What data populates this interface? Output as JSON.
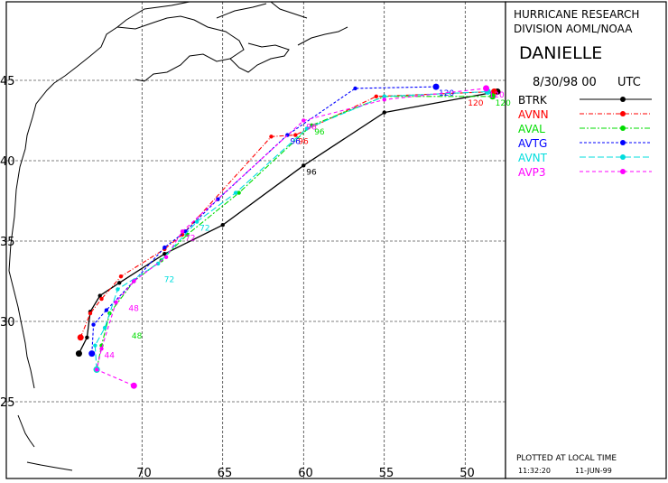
{
  "header": {
    "org_line1": "HURRICANE RESEARCH",
    "org_line2": "DIVISION AOML/NOAA",
    "storm_name": "DANIELLE",
    "date_time": "8/30/98 00",
    "utc": "UTC"
  },
  "footer": {
    "plotted_label": "PLOTTED AT LOCAL TIME",
    "time": "11:32:20",
    "date": "11-JUN-99"
  },
  "colors": {
    "BTRK": "#000000",
    "AVNN": "#ff0000",
    "AVAL": "#00dd00",
    "AVTG": "#0000ff",
    "AVNT": "#00dddd",
    "AVP3": "#ff00ff",
    "land": "#000000"
  },
  "map": {
    "lon_ticks": [
      "70",
      "65",
      "60",
      "55",
      "50"
    ],
    "lat_ticks": [
      "45",
      "40",
      "35",
      "30",
      "25"
    ]
  },
  "chart_data": {
    "type": "line",
    "lon_values": [
      70,
      65,
      60,
      55,
      50
    ],
    "lat_values": [
      45,
      40,
      35,
      30,
      25
    ],
    "series": [
      {
        "name": "BTRK",
        "points": [
          [
            73.9,
            28.0
          ],
          [
            73.4,
            29.0
          ],
          [
            73.2,
            30.6
          ],
          [
            72.6,
            31.6
          ],
          [
            71.4,
            32.4
          ],
          [
            68.6,
            34.2
          ],
          [
            65.0,
            36.0
          ],
          [
            60.0,
            39.7
          ],
          [
            55.0,
            43.0
          ],
          [
            48.0,
            44.3
          ]
        ],
        "labels": [
          {
            "text": "96",
            "at": [
              60.0,
              39.7
            ]
          }
        ]
      },
      {
        "name": "AVNN",
        "points": [
          [
            73.8,
            29.0
          ],
          [
            73.2,
            30.5
          ],
          [
            72.5,
            31.4
          ],
          [
            71.3,
            32.8
          ],
          [
            68.6,
            34.5
          ],
          [
            67.5,
            35.4
          ],
          [
            62.0,
            41.5
          ],
          [
            60.5,
            41.6
          ],
          [
            55.5,
            44.0
          ],
          [
            48.2,
            44.3
          ]
        ],
        "labels": [
          {
            "text": "96",
            "at": [
              60.5,
              41.6
            ]
          },
          {
            "text": "120",
            "at": [
              50.0,
              44.0
            ]
          }
        ]
      },
      {
        "name": "AVAL",
        "points": [
          [
            72.8,
            27.0
          ],
          [
            72.5,
            28.5
          ],
          [
            72.0,
            30.5
          ],
          [
            70.5,
            32.5
          ],
          [
            68.8,
            33.8
          ],
          [
            67.2,
            35.4
          ],
          [
            64.0,
            38.0
          ],
          [
            59.5,
            42.2
          ],
          [
            55.0,
            44.0
          ],
          [
            48.3,
            44.0
          ]
        ],
        "labels": [
          {
            "text": "48",
            "at": [
              70.8,
              29.5
            ]
          },
          {
            "text": "96",
            "at": [
              59.5,
              42.2
            ]
          },
          {
            "text": "120",
            "at": [
              48.3,
              44.0
            ]
          }
        ]
      },
      {
        "name": "AVTG",
        "points": [
          [
            73.1,
            28.0
          ],
          [
            73.0,
            29.8
          ],
          [
            72.2,
            30.7
          ],
          [
            70.5,
            32.5
          ],
          [
            68.6,
            34.6
          ],
          [
            67.3,
            35.6
          ],
          [
            65.3,
            37.6
          ],
          [
            61.0,
            41.6
          ],
          [
            56.8,
            44.5
          ],
          [
            51.8,
            44.6
          ]
        ],
        "labels": [
          {
            "text": "96",
            "at": [
              61.0,
              41.6
            ]
          },
          {
            "text": "120",
            "at": [
              51.8,
              44.6
            ]
          }
        ]
      },
      {
        "name": "AVNT",
        "points": [
          [
            72.8,
            27.0
          ],
          [
            72.9,
            28.5
          ],
          [
            72.3,
            29.6
          ],
          [
            71.5,
            32.0
          ],
          [
            69.0,
            33.6
          ],
          [
            66.6,
            36.2
          ],
          [
            64.2,
            38.0
          ],
          [
            59.8,
            42.0
          ],
          [
            55.0,
            44.0
          ],
          [
            48.6,
            44.3
          ]
        ],
        "labels": [
          {
            "text": "72",
            "at": [
              68.8,
              33.0
            ]
          },
          {
            "text": "72",
            "at": [
              66.6,
              36.2
            ]
          }
        ]
      },
      {
        "name": "AVP3",
        "points": [
          [
            70.5,
            26.0
          ],
          [
            72.8,
            27.0
          ],
          [
            72.5,
            28.3
          ],
          [
            71.6,
            31.2
          ],
          [
            70.5,
            32.5
          ],
          [
            68.5,
            34.0
          ],
          [
            67.5,
            35.6
          ],
          [
            60.0,
            42.5
          ],
          [
            55.0,
            43.8
          ],
          [
            48.7,
            44.5
          ]
        ],
        "labels": [
          {
            "text": "44",
            "at": [
              72.5,
              28.3
            ]
          },
          {
            "text": "48",
            "at": [
              71.0,
              31.2
            ]
          },
          {
            "text": "72",
            "at": [
              67.5,
              35.6
            ]
          },
          {
            "text": "96",
            "at": [
              60.0,
              42.5
            ]
          },
          {
            "text": "120",
            "at": [
              48.7,
              44.5
            ]
          }
        ]
      }
    ]
  }
}
